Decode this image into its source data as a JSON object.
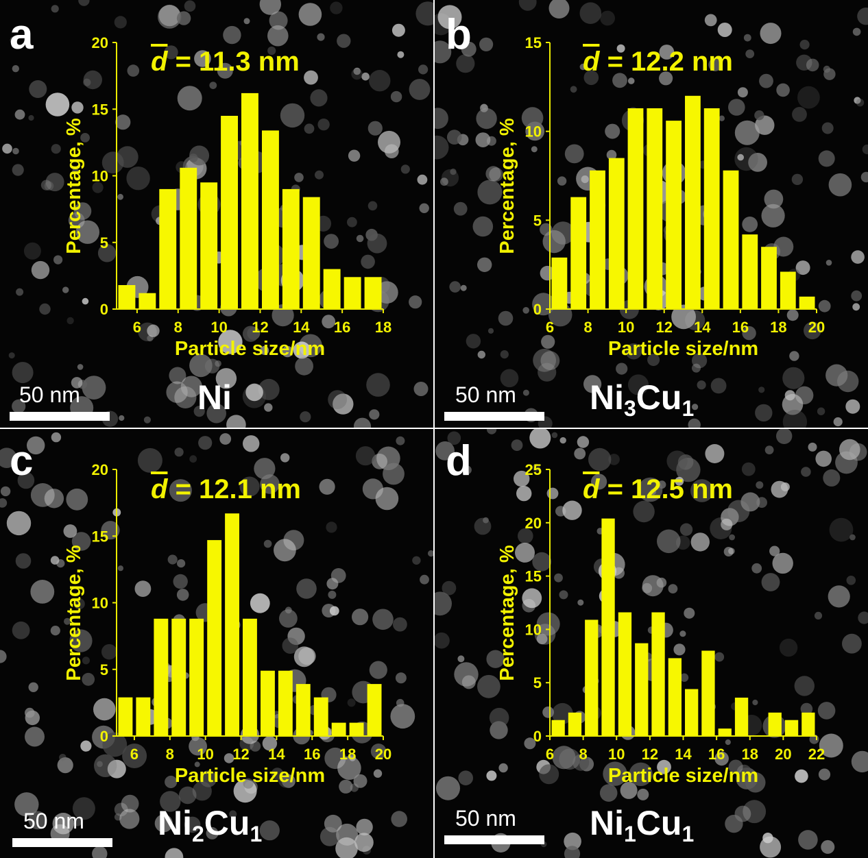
{
  "panels": [
    {
      "letter": "a",
      "sample": {
        "base": "Ni",
        "parts": []
      },
      "scale_bar": "50 nm",
      "mean_label": "= 11.3 nm",
      "mean_symbol": "d",
      "chart_data": {
        "type": "bar",
        "xlabel": "Particle size/nm",
        "ylabel": "Percentage, %",
        "xlim": [
          5,
          18
        ],
        "ylim": [
          0,
          20
        ],
        "xticks": [
          6,
          8,
          10,
          12,
          14,
          16,
          18
        ],
        "yticks": [
          0,
          5,
          10,
          15,
          20
        ],
        "bin_width": 1,
        "x": [
          5.5,
          6.5,
          7.5,
          8.5,
          9.5,
          10.5,
          11.5,
          12.5,
          13.5,
          14.5,
          15.5,
          16.5,
          17.5
        ],
        "values": [
          1.8,
          1.2,
          9.0,
          10.6,
          9.5,
          14.5,
          16.2,
          13.4,
          9.0,
          8.4,
          3.0,
          2.4,
          2.4
        ]
      }
    },
    {
      "letter": "b",
      "sample": {
        "base": "",
        "parts": [
          [
            "Ni",
            "3"
          ],
          [
            "Cu",
            "1"
          ]
        ]
      },
      "scale_bar": "50 nm",
      "mean_label": "= 12.2 nm",
      "mean_symbol": "d",
      "chart_data": {
        "type": "bar",
        "xlabel": "Particle size/nm",
        "ylabel": "Percentage, %",
        "xlim": [
          6,
          20
        ],
        "ylim": [
          0,
          15
        ],
        "xticks": [
          6,
          8,
          10,
          12,
          14,
          16,
          18,
          20
        ],
        "yticks": [
          0,
          5,
          10,
          15
        ],
        "bin_width": 1,
        "x": [
          6.5,
          7.5,
          8.5,
          9.5,
          10.5,
          11.5,
          12.5,
          13.5,
          14.5,
          15.5,
          16.5,
          17.5,
          18.5,
          19.5
        ],
        "values": [
          2.9,
          6.3,
          7.8,
          8.5,
          11.3,
          11.3,
          10.6,
          12.0,
          11.3,
          7.8,
          4.2,
          3.5,
          2.1,
          0.7
        ]
      }
    },
    {
      "letter": "c",
      "sample": {
        "base": "",
        "parts": [
          [
            "Ni",
            "2"
          ],
          [
            "Cu",
            "1"
          ]
        ]
      },
      "scale_bar": "50 nm",
      "mean_label": "= 12.1 nm",
      "mean_symbol": "d",
      "chart_data": {
        "type": "bar",
        "xlabel": "Particle size/nm",
        "ylabel": "Percentage, %",
        "xlim": [
          5,
          20
        ],
        "ylim": [
          0,
          20
        ],
        "xticks": [
          6,
          8,
          10,
          12,
          14,
          16,
          18,
          20
        ],
        "yticks": [
          0,
          5,
          10,
          15,
          20
        ],
        "bin_width": 1,
        "x": [
          5.5,
          6.5,
          7.5,
          8.5,
          9.5,
          10.5,
          11.5,
          12.5,
          13.5,
          14.5,
          15.5,
          16.5,
          17.5,
          18.5,
          19.5
        ],
        "values": [
          2.9,
          2.9,
          8.8,
          8.8,
          8.8,
          14.7,
          16.7,
          8.8,
          4.9,
          4.9,
          3.9,
          2.9,
          1.0,
          1.0,
          3.9
        ]
      }
    },
    {
      "letter": "d",
      "sample": {
        "base": "",
        "parts": [
          [
            "Ni",
            "1"
          ],
          [
            "Cu",
            "1"
          ]
        ]
      },
      "scale_bar": "50 nm",
      "mean_label": "= 12.5 nm",
      "mean_symbol": "d",
      "chart_data": {
        "type": "bar",
        "xlabel": "Particle size/nm",
        "ylabel": "Percentage, %",
        "xlim": [
          6,
          22
        ],
        "ylim": [
          0,
          25
        ],
        "xticks": [
          6,
          8,
          10,
          12,
          14,
          16,
          18,
          20,
          22
        ],
        "yticks": [
          0,
          5,
          10,
          15,
          20,
          25
        ],
        "bin_width": 1,
        "x": [
          6.5,
          7.5,
          8.5,
          9.5,
          10.5,
          11.5,
          12.5,
          13.5,
          14.5,
          15.5,
          16.5,
          17.5,
          18.5,
          19.5,
          20.5,
          21.5
        ],
        "values": [
          1.5,
          2.2,
          10.9,
          20.4,
          11.6,
          8.7,
          11.6,
          7.3,
          4.4,
          8.0,
          0.7,
          3.6,
          0,
          2.2,
          1.5,
          2.2
        ]
      }
    }
  ],
  "colors": {
    "bar": "#f7f700",
    "axis": "#ecec00",
    "text_yellow": "#f2f200",
    "background": "#000000",
    "overlay_text": "#ffffff"
  }
}
